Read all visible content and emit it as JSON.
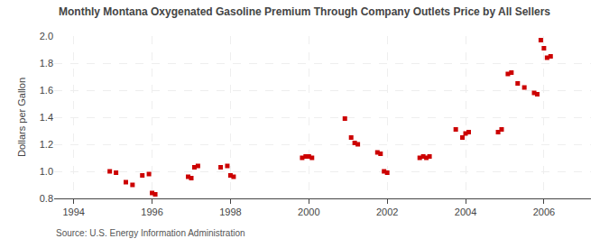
{
  "chart_data": {
    "type": "scatter",
    "title": "Monthly Montana Oxygenated Gasoline Premium Through Company Outlets Price by All Sellers",
    "ylabel": "Dollars per Gallon",
    "annotations": [
      "Source: U.S. Energy Information Administration"
    ],
    "color": "#cc0000",
    "marker": "square",
    "grid": true,
    "xlim": [
      1993.5,
      2007.2
    ],
    "ylim": [
      0.8,
      2.0
    ],
    "xticks": [
      1994,
      1996,
      1998,
      2000,
      2002,
      2004,
      2006
    ],
    "yticks": [
      0.8,
      {
        "value": 1.0,
        "label": "1.0"
      },
      1.2,
      1.4,
      1.6,
      1.8,
      {
        "value": 2.0,
        "label": "2.0"
      }
    ],
    "x": [
      1994.92,
      1995.08,
      1995.33,
      1995.5,
      1995.75,
      1995.92,
      1996.0,
      1996.08,
      1996.92,
      1997.0,
      1997.08,
      1997.17,
      1997.75,
      1997.92,
      1998.0,
      1998.08,
      1999.83,
      1999.92,
      2000.0,
      2000.08,
      2000.92,
      2001.08,
      2001.17,
      2001.25,
      2001.75,
      2001.83,
      2001.92,
      2002.0,
      2002.83,
      2002.92,
      2003.0,
      2003.08,
      2003.75,
      2003.92,
      2004.0,
      2004.08,
      2004.83,
      2004.92,
      2005.08,
      2005.17,
      2005.33,
      2005.5,
      2005.75,
      2005.83,
      2005.92,
      2006.0,
      2006.08,
      2006.17
    ],
    "values": [
      1.0,
      0.99,
      0.92,
      0.9,
      0.97,
      0.98,
      0.84,
      0.83,
      0.96,
      0.95,
      1.03,
      1.04,
      1.03,
      1.04,
      0.97,
      0.96,
      1.1,
      1.11,
      1.11,
      1.1,
      1.39,
      1.25,
      1.21,
      1.2,
      1.14,
      1.13,
      1.0,
      0.99,
      1.1,
      1.11,
      1.1,
      1.11,
      1.31,
      1.25,
      1.28,
      1.29,
      1.29,
      1.31,
      1.72,
      1.73,
      1.65,
      1.62,
      1.58,
      1.57,
      1.97,
      1.91,
      1.84,
      1.85
    ]
  }
}
